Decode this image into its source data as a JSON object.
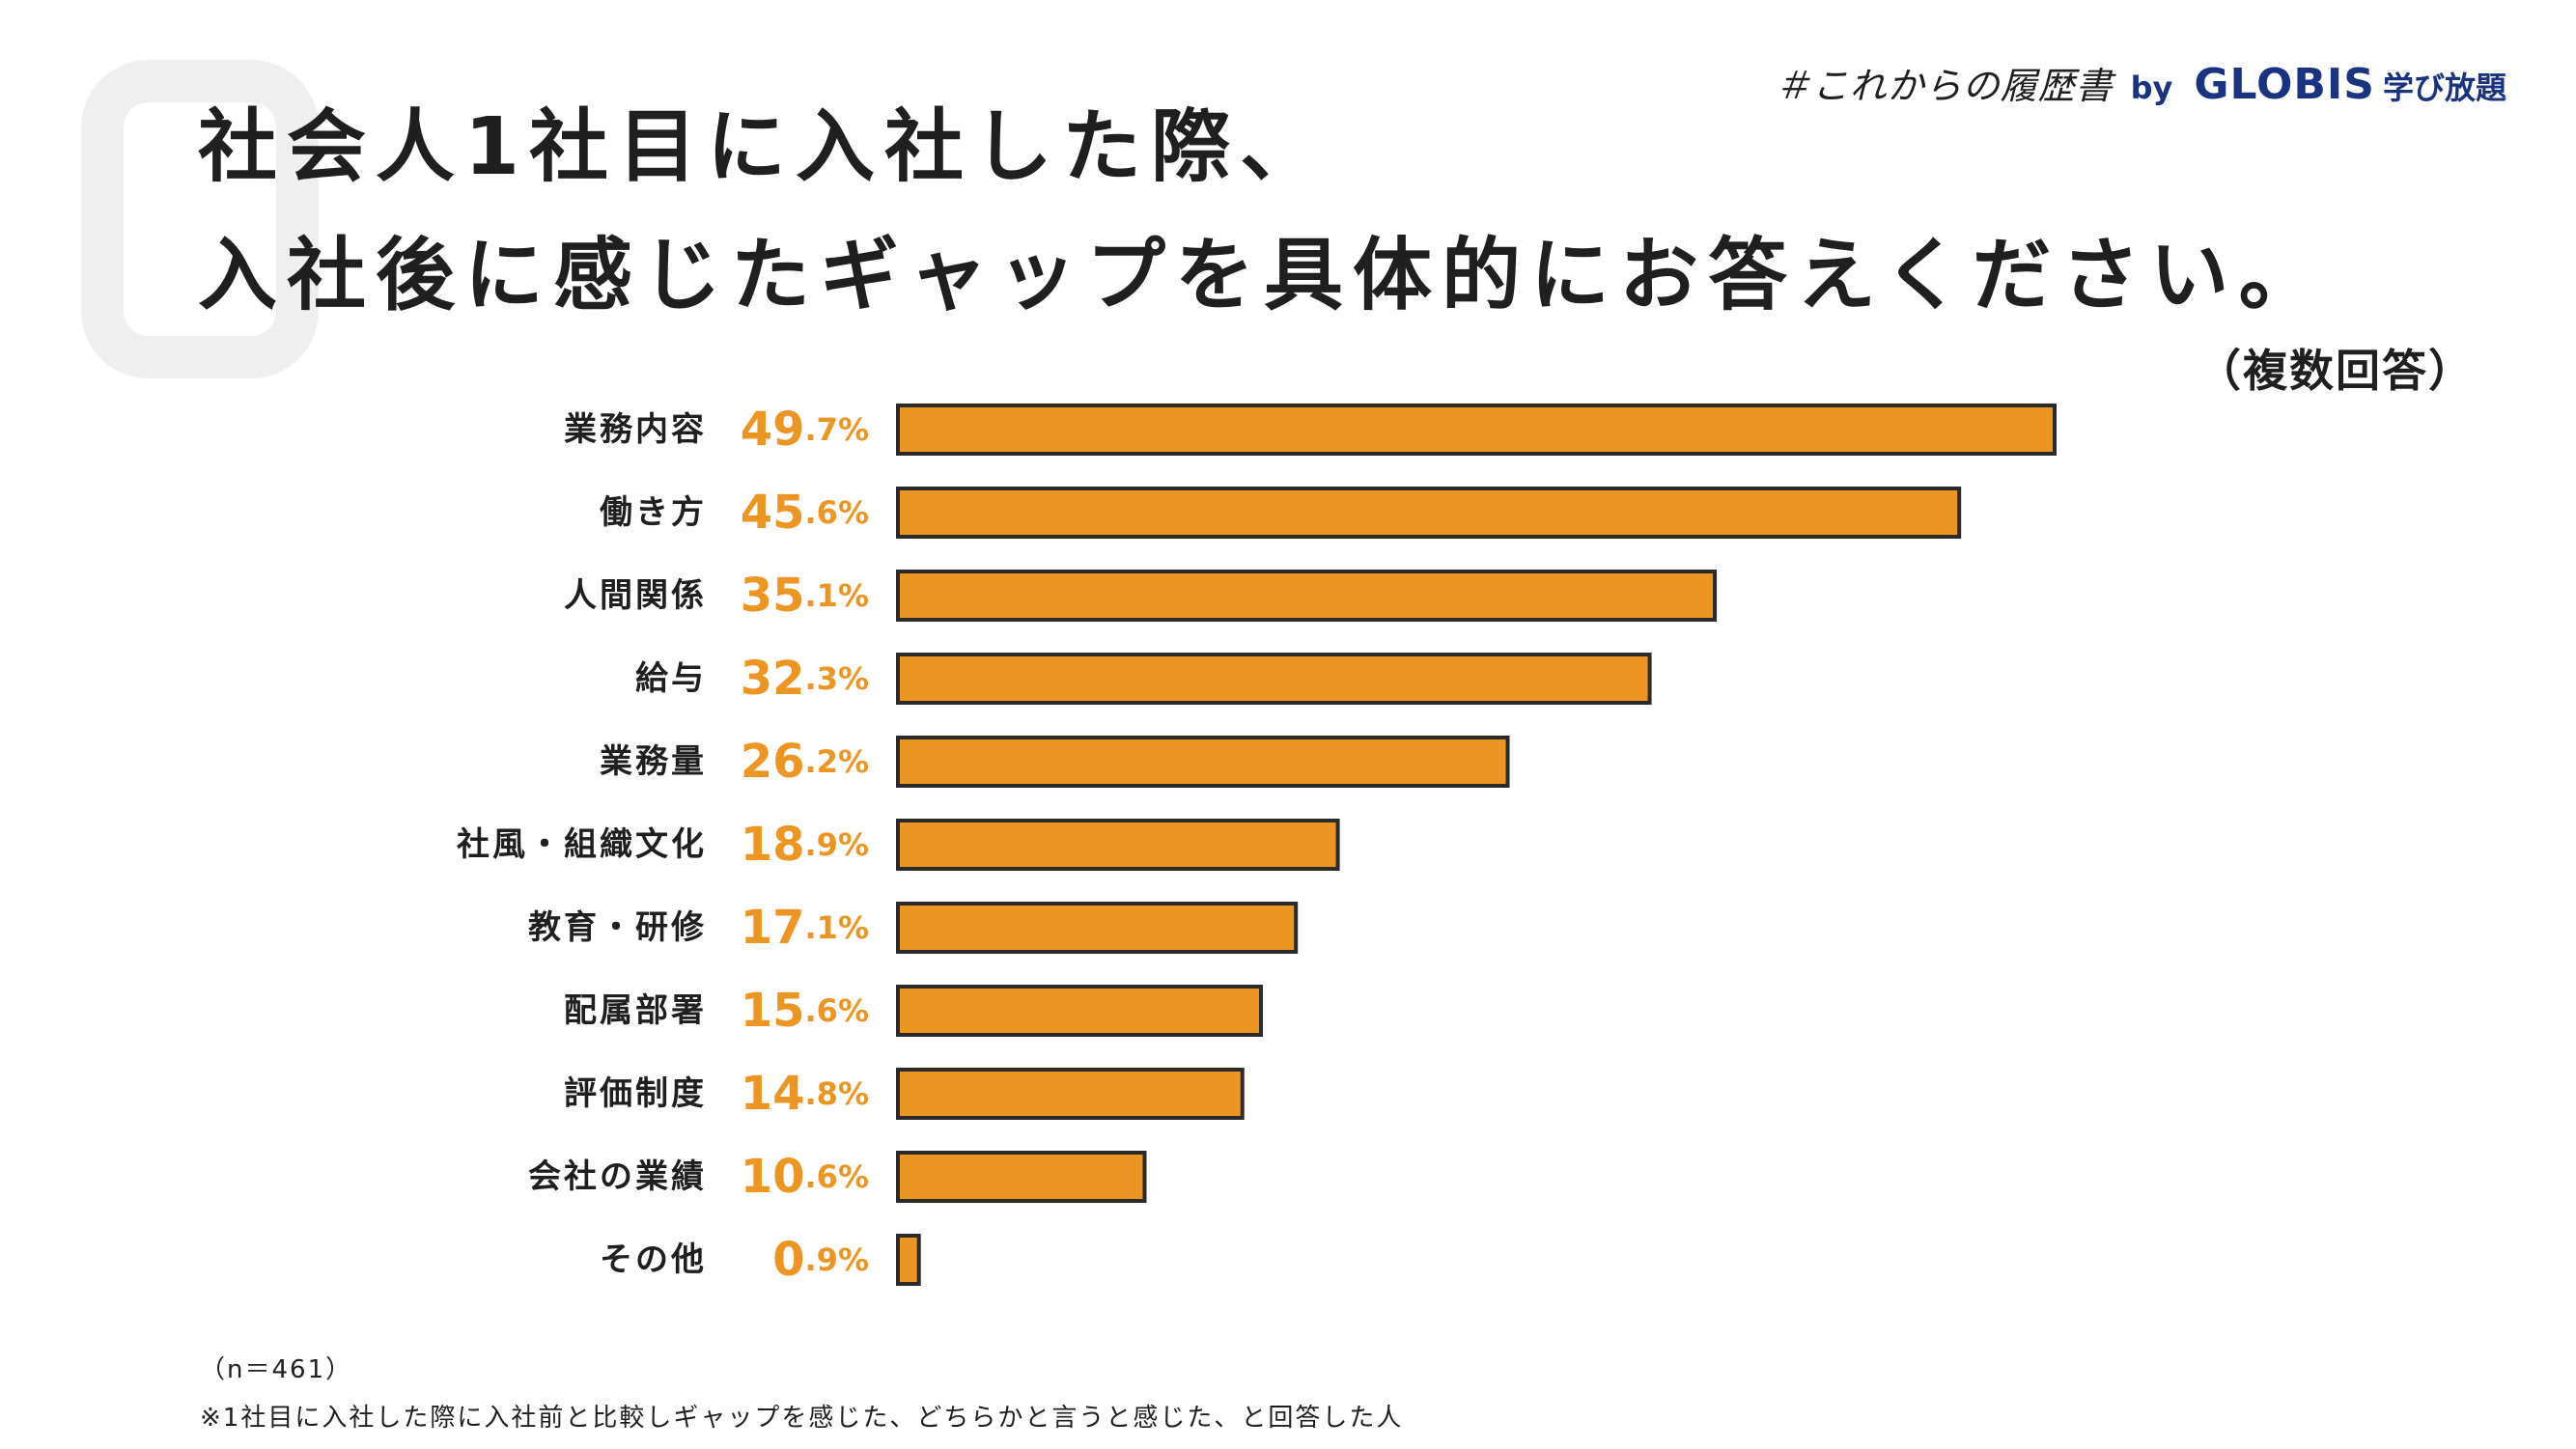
{
  "header": {
    "title_line1": "社会人1社目に入社した際、",
    "title_line2": "入社後に感じたギャップを具体的にお答えください。",
    "subtitle": "（複数回答）"
  },
  "brand": {
    "hashtag": "＃これからの履歴書",
    "by": "by",
    "globis": "GLOBIS",
    "suffix": "学び放題",
    "color": "#1a3380"
  },
  "colors": {
    "bar": "#ec9523",
    "bar_stroke": "#2b2b2b",
    "value_text": "#ec9523",
    "label_text": "#1f1f1f"
  },
  "chart_data": {
    "type": "bar",
    "orientation": "horizontal",
    "categories": [
      "業務内容",
      "働き方",
      "人間関係",
      "給与",
      "業務量",
      "社風・組織文化",
      "教育・研修",
      "配属部署",
      "評価制度",
      "会社の業績",
      "その他"
    ],
    "values": [
      49.7,
      45.6,
      35.1,
      32.3,
      26.2,
      18.9,
      17.1,
      15.6,
      14.8,
      10.6,
      0.9
    ],
    "unit": "%",
    "xlim": [
      0,
      50
    ],
    "grid": false,
    "legend": "none"
  },
  "footnotes": {
    "n": "（n＝461）",
    "note": "※1社目に入社した際に入社前と比較しギャップを感じた、どちらかと言うと感じた、と回答した人"
  }
}
